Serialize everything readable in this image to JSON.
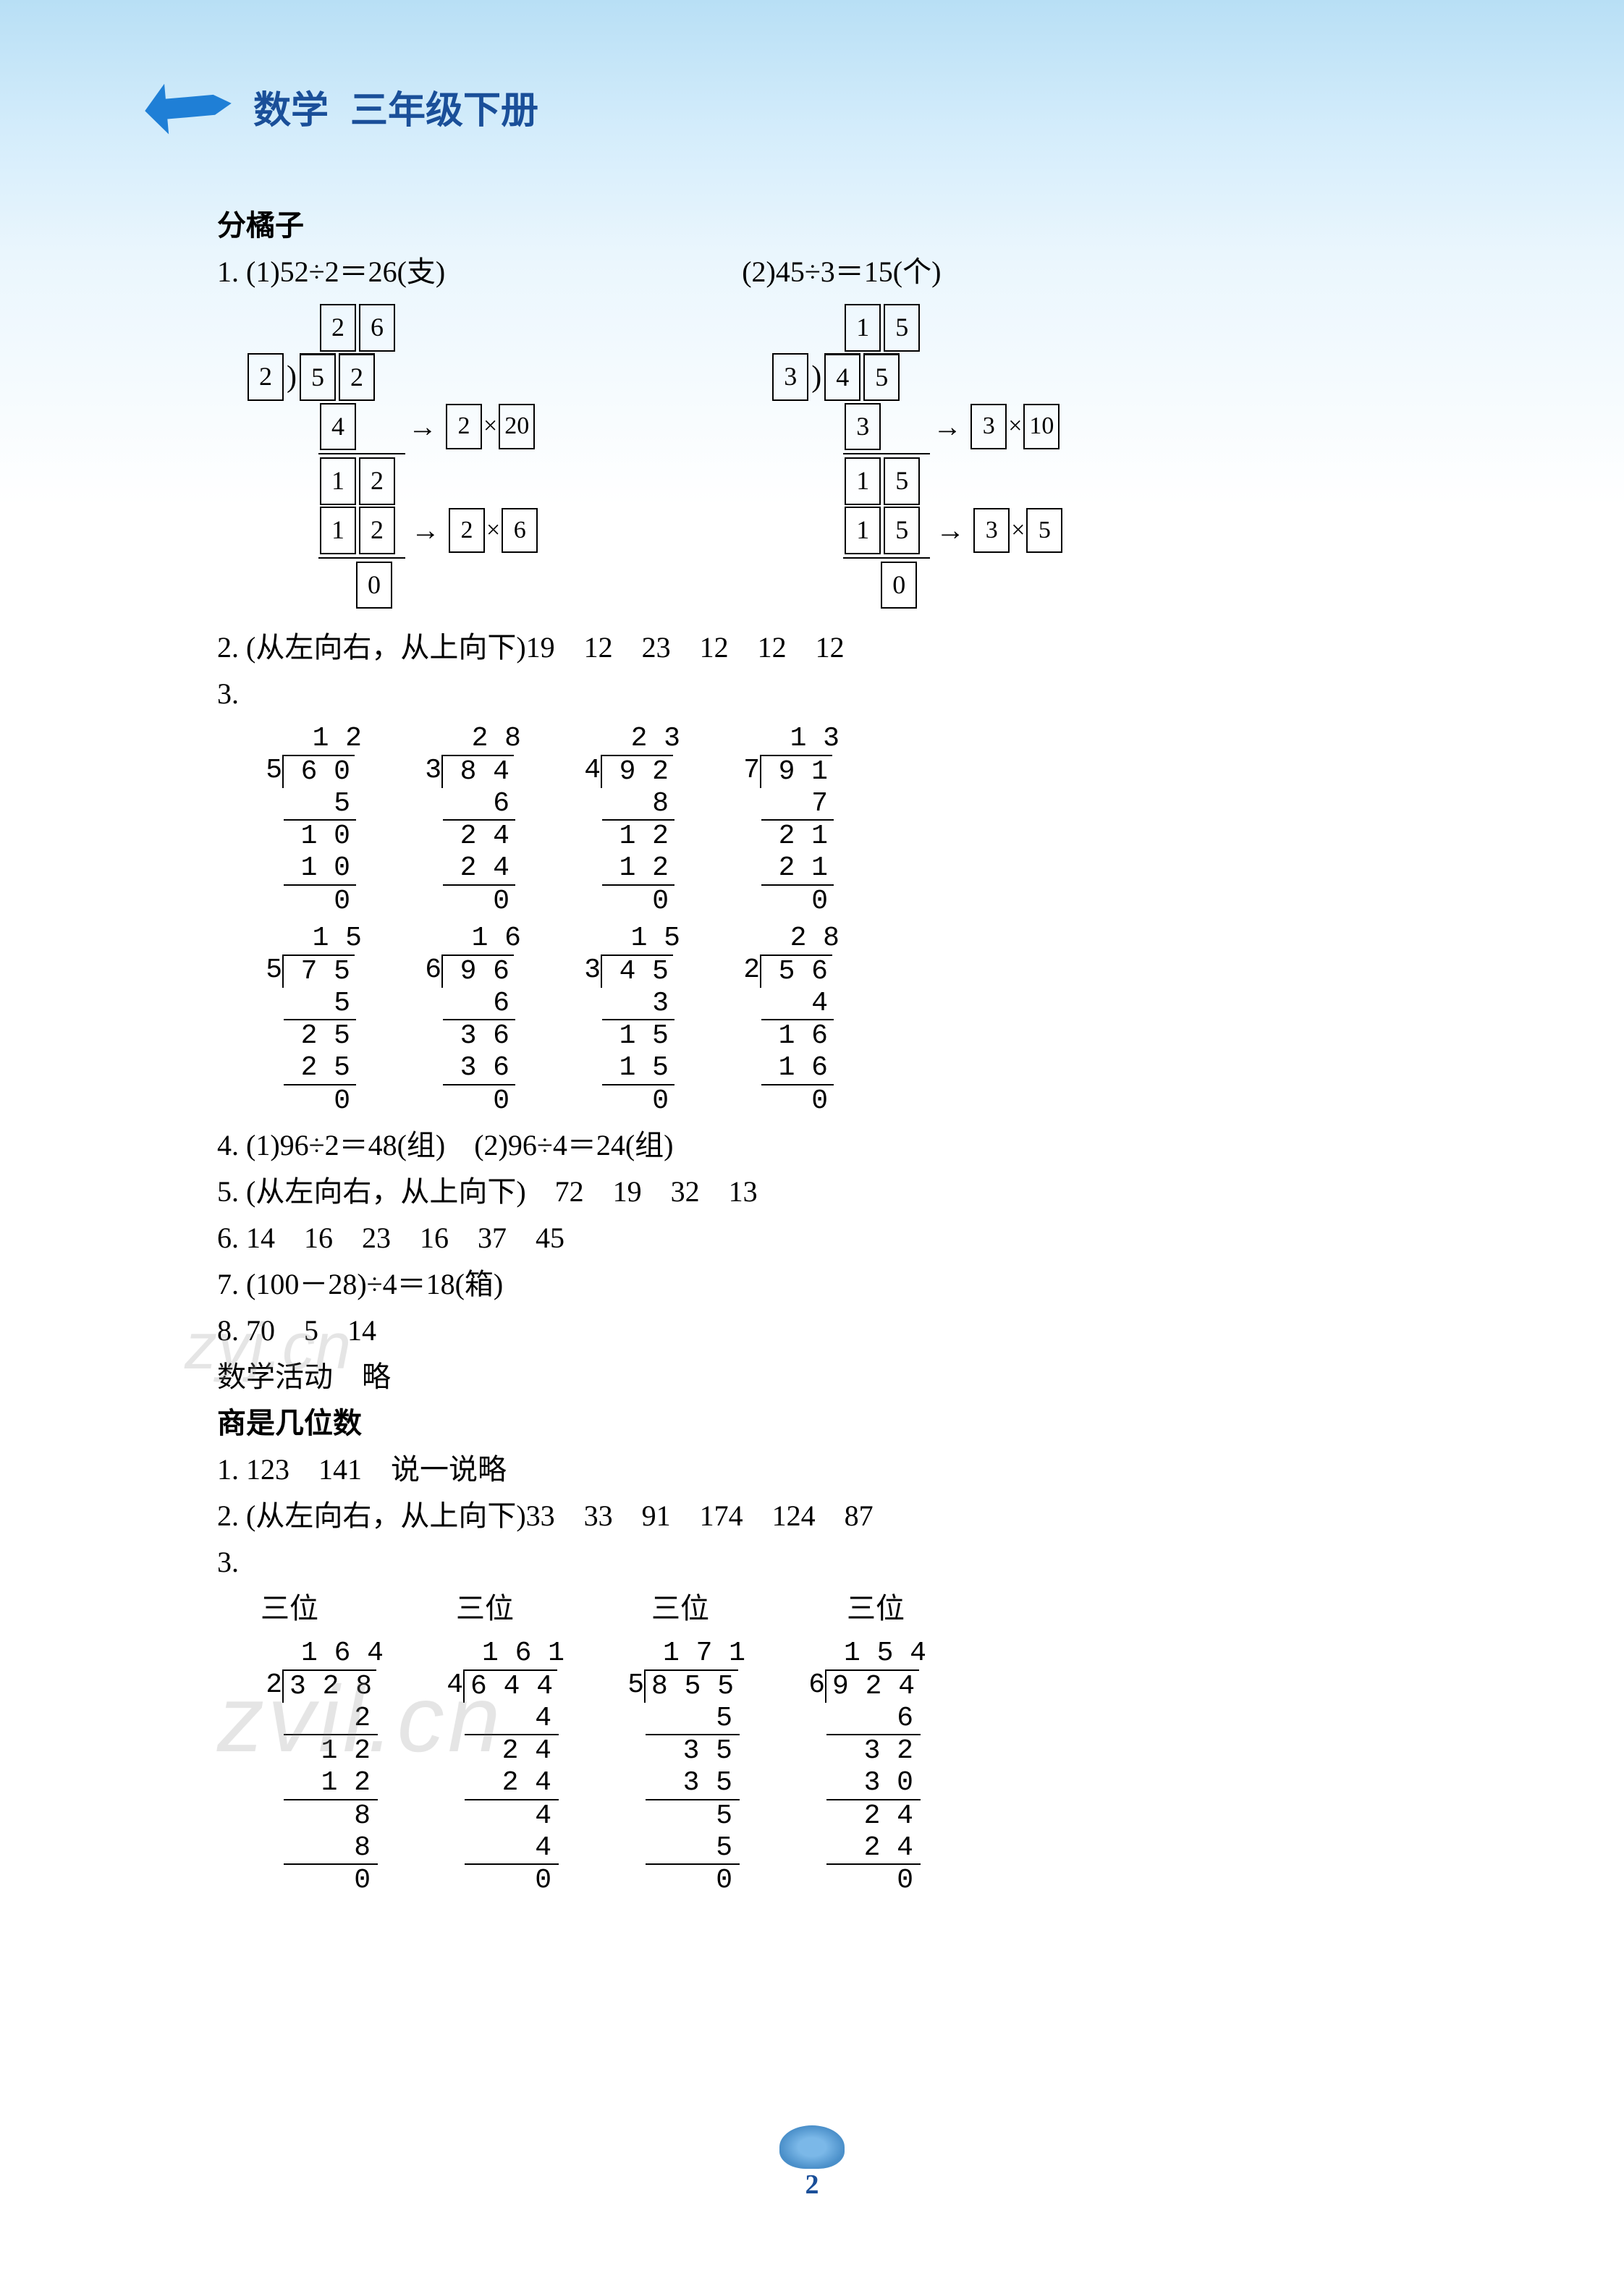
{
  "header": {
    "subject": "数学",
    "grade": "三年级下册"
  },
  "section1_title": "分橘子",
  "q1": {
    "left_text": "1. (1)52÷2＝26(支)",
    "right_text": "(2)45÷3＝15(个)",
    "left_division": {
      "a": "2",
      "b": "6",
      "divisor": "2",
      "d1": "5",
      "d2": "2",
      "s1": "4",
      "ann1a": "2",
      "ann1b": "20",
      "r1a": "1",
      "r1b": "2",
      "s2a": "1",
      "s2b": "2",
      "ann2a": "2",
      "ann2b": "6",
      "rem": "0"
    },
    "right_division": {
      "a": "1",
      "b": "5",
      "divisor": "3",
      "d1": "4",
      "d2": "5",
      "s1": "3",
      "ann1a": "3",
      "ann1b": "10",
      "r1a": "1",
      "r1b": "5",
      "s2a": "1",
      "s2b": "5",
      "ann2a": "3",
      "ann2b": "5",
      "rem": "0"
    }
  },
  "q2": "2. (从左向右，从上向下)19　12　23　12　12　12",
  "q3_label": "3.",
  "q3_row1": [
    {
      "divisor": "5",
      "dividend": "6 0",
      "quotient": "1 2",
      "lines": [
        "5",
        "1 0",
        "1 0",
        "0"
      ]
    },
    {
      "divisor": "3",
      "dividend": "8 4",
      "quotient": "2 8",
      "lines": [
        "6",
        "2 4",
        "2 4",
        "0"
      ]
    },
    {
      "divisor": "4",
      "dividend": "9 2",
      "quotient": "2 3",
      "lines": [
        "8",
        "1 2",
        "1 2",
        "0"
      ]
    },
    {
      "divisor": "7",
      "dividend": "9 1",
      "quotient": "1 3",
      "lines": [
        "7",
        "2 1",
        "2 1",
        "0"
      ]
    }
  ],
  "q3_row2": [
    {
      "divisor": "5",
      "dividend": "7 5",
      "quotient": "1 5",
      "lines": [
        "5",
        "2 5",
        "2 5",
        "0"
      ]
    },
    {
      "divisor": "6",
      "dividend": "9 6",
      "quotient": "1 6",
      "lines": [
        "6",
        "3 6",
        "3 6",
        "0"
      ]
    },
    {
      "divisor": "3",
      "dividend": "4 5",
      "quotient": "1 5",
      "lines": [
        "3",
        "1 5",
        "1 5",
        "0"
      ]
    },
    {
      "divisor": "2",
      "dividend": "5 6",
      "quotient": "2 8",
      "lines": [
        "4",
        "1 6",
        "1 6",
        "0"
      ]
    }
  ],
  "q4": "4. (1)96÷2＝48(组)　(2)96÷4＝24(组)",
  "q5": "5. (从左向右，从上向下)　72　19　32　13",
  "q6": "6. 14　16　23　16　37　45",
  "q7": "7. (100－28)÷4＝18(箱)",
  "q8": "8. 70　5　14",
  "activity": "数学活动　略",
  "section2_title": "商是几位数",
  "s2q1": "1. 123　141　说一说略",
  "s2q2": "2. (从左向右，从上向下)33　33　91　174　124　87",
  "s2q3_label": "3.",
  "s2q3_labels": [
    "三位",
    "三位",
    "三位",
    "三位"
  ],
  "s2q3": [
    {
      "divisor": "2",
      "dividend": "3 2 8",
      "quotient": "1 6 4",
      "lines": [
        "2",
        "1 2",
        "1 2",
        "8",
        "8",
        "0"
      ]
    },
    {
      "divisor": "4",
      "dividend": "6 4 4",
      "quotient": "1 6 1",
      "lines": [
        "4",
        "2 4",
        "2 4",
        "4",
        "4",
        "0"
      ]
    },
    {
      "divisor": "5",
      "dividend": "8 5 5",
      "quotient": "1 7 1",
      "lines": [
        "5",
        "3 5",
        "3 5",
        "5",
        "5",
        "0"
      ]
    },
    {
      "divisor": "6",
      "dividend": "9 2 4",
      "quotient": "1 5 4",
      "lines": [
        "6",
        "3 2",
        "3 0",
        "2 4",
        "2 4",
        "0"
      ]
    }
  ],
  "page_number": "2",
  "colors": {
    "header_text": "#1a4f99",
    "arrow_bg": "#1f7fd6",
    "gradient_top": "#b8dff5"
  },
  "watermark1": "zyj.cn",
  "watermark2": "zvil.cn"
}
